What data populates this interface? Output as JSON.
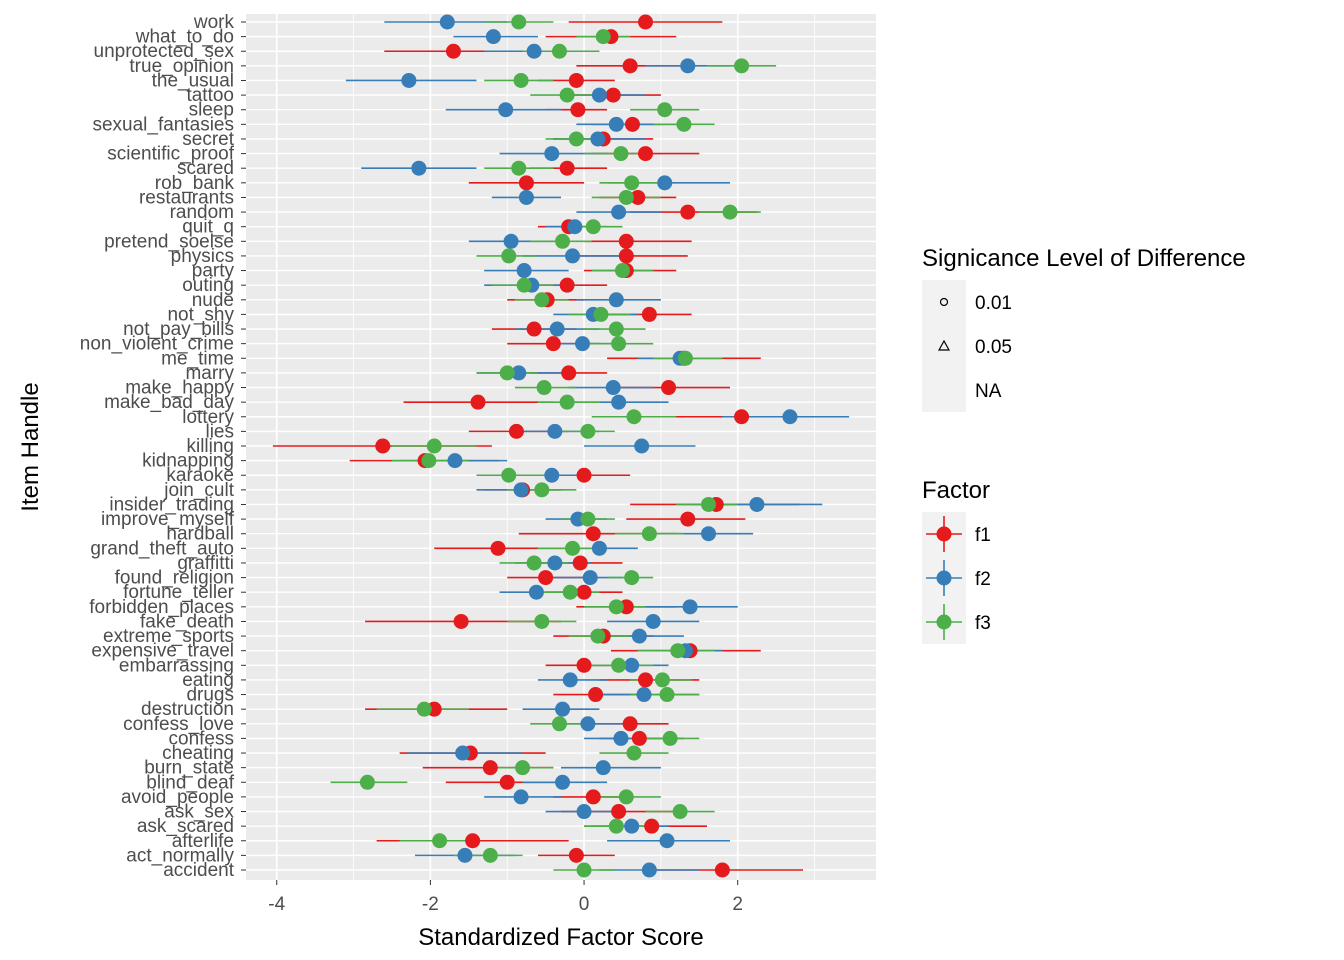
{
  "chart_data": {
    "type": "scatter",
    "subtype": "dot-and-interval (horizontal error bars)",
    "xlabel": "Standardized Factor Score",
    "ylabel": "Item Handle",
    "xlim": [
      -4.4,
      3.8
    ],
    "xticks": [
      -4,
      -2,
      0,
      2
    ],
    "grid": true,
    "legend_position": "right",
    "items": [
      "work",
      "what_to_do",
      "unprotected_sex",
      "true_opinion",
      "the_usual",
      "tattoo",
      "sleep",
      "sexual_fantasies",
      "secret",
      "scientific_proof",
      "scared",
      "rob_bank",
      "restaurants",
      "random",
      "quit_q",
      "pretend_soelse",
      "physics",
      "party",
      "outing",
      "nude",
      "not_shy",
      "not_pay_bills",
      "non_violent_crime",
      "me_time",
      "marry",
      "make_happy",
      "make_bad_day",
      "lottery",
      "lies",
      "killing",
      "kidnapping",
      "karaoke",
      "join_cult",
      "insider_trading",
      "improve_myself",
      "hardball",
      "grand_theft_auto",
      "graffitti",
      "found_religion",
      "fortune_teller",
      "forbidden_places",
      "fake_death",
      "extreme_sports",
      "expensive_travel",
      "embarrassing",
      "eating",
      "drugs",
      "destruction",
      "confess_love",
      "confess",
      "cheating",
      "burn_state",
      "blind_deaf",
      "avoid_people",
      "ask_sex",
      "ask_scared",
      "afterlife",
      "act_normally",
      "accident"
    ],
    "series": [
      {
        "name": "f1",
        "color": "#E41A1C",
        "values": [
          0.8,
          0.35,
          -1.7,
          0.6,
          -0.1,
          0.38,
          -0.08,
          0.63,
          0.25,
          0.8,
          -0.22,
          -0.75,
          0.7,
          1.35,
          -0.2,
          0.55,
          0.55,
          0.55,
          -0.22,
          -0.48,
          0.85,
          -0.65,
          -0.4,
          1.3,
          -0.2,
          1.1,
          -1.38,
          2.05,
          -0.88,
          -2.62,
          -2.07,
          0.0,
          -0.8,
          1.72,
          1.35,
          0.12,
          -1.12,
          -0.05,
          -0.5,
          0.0,
          0.55,
          -1.6,
          0.25,
          1.38,
          0.0,
          0.8,
          0.15,
          -1.95,
          0.6,
          0.72,
          -1.48,
          -1.22,
          -1.0,
          0.12,
          0.45,
          0.88,
          -1.45,
          -0.1,
          1.8
        ],
        "low": [
          -0.2,
          -0.5,
          -2.6,
          -0.1,
          -0.6,
          -0.2,
          -0.5,
          0.1,
          -0.4,
          0.1,
          -0.7,
          -1.5,
          0.2,
          0.6,
          -0.6,
          0.0,
          -0.1,
          0.0,
          -0.7,
          -1.0,
          0.3,
          -1.2,
          -1.0,
          0.3,
          -0.7,
          0.3,
          -2.35,
          0.75,
          -1.5,
          -4.05,
          -3.05,
          -0.6,
          -1.3,
          0.6,
          0.55,
          -0.85,
          -1.95,
          -0.7,
          -1.0,
          -0.5,
          -0.1,
          -2.85,
          -0.4,
          0.35,
          -0.5,
          0.2,
          -0.4,
          -2.85,
          0.1,
          0.2,
          -2.4,
          -2.1,
          -1.8,
          -0.4,
          -0.3,
          0.0,
          -2.7,
          -0.6,
          0.8
        ],
        "high": [
          1.8,
          1.2,
          -0.8,
          1.3,
          0.4,
          1.0,
          0.3,
          1.2,
          0.9,
          1.5,
          0.3,
          0.0,
          1.2,
          2.25,
          0.2,
          1.4,
          1.35,
          1.2,
          0.3,
          0.0,
          1.4,
          -0.1,
          0.2,
          2.3,
          0.3,
          1.9,
          -0.4,
          3.4,
          -0.2,
          -1.2,
          -1.1,
          0.6,
          -0.3,
          2.8,
          2.1,
          1.2,
          -0.3,
          0.5,
          0.0,
          0.5,
          1.2,
          -0.3,
          0.9,
          2.3,
          0.5,
          1.5,
          0.7,
          -1.0,
          1.1,
          1.3,
          -0.5,
          -0.4,
          -0.2,
          0.6,
          1.2,
          1.6,
          -0.2,
          0.4,
          2.85
        ]
      },
      {
        "name": "f2",
        "color": "#377EB8",
        "values": [
          -1.78,
          -1.18,
          -0.65,
          1.35,
          -2.28,
          0.2,
          -1.02,
          0.42,
          0.18,
          -0.42,
          -2.15,
          1.05,
          -0.75,
          0.45,
          -0.12,
          -0.95,
          -0.15,
          -0.78,
          -0.68,
          0.42,
          0.12,
          -0.35,
          -0.02,
          1.25,
          -0.85,
          0.38,
          0.45,
          2.68,
          -0.38,
          0.75,
          -1.68,
          -0.42,
          -0.82,
          2.25,
          -0.08,
          1.62,
          0.2,
          -0.38,
          0.08,
          -0.62,
          1.38,
          0.9,
          0.72,
          1.32,
          0.62,
          -0.18,
          0.78,
          -0.28,
          0.05,
          0.48,
          -1.58,
          0.25,
          -0.28,
          -0.82,
          0.0,
          0.62,
          1.08,
          -1.55,
          0.85
        ],
        "low": [
          -2.6,
          -1.7,
          -1.3,
          0.8,
          -3.1,
          -0.3,
          -1.8,
          -0.1,
          -0.4,
          -1.1,
          -2.9,
          0.3,
          -1.2,
          -0.1,
          -0.5,
          -1.5,
          -0.8,
          -1.3,
          -1.3,
          -0.1,
          -0.4,
          -0.9,
          -0.5,
          0.7,
          -1.4,
          -0.2,
          -0.2,
          1.8,
          -0.9,
          0.0,
          -2.4,
          -0.9,
          -1.4,
          1.4,
          -0.5,
          1.0,
          -0.3,
          -0.9,
          -0.4,
          -1.1,
          0.7,
          0.3,
          0.2,
          0.7,
          0.1,
          -0.6,
          0.1,
          -0.8,
          -0.4,
          0.0,
          -2.3,
          -0.3,
          -0.8,
          -1.3,
          -0.5,
          0.1,
          0.3,
          -2.2,
          0.2
        ],
        "high": [
          -1.0,
          -0.6,
          0.0,
          1.9,
          -1.4,
          0.8,
          -0.3,
          1.0,
          0.8,
          0.3,
          -1.4,
          1.9,
          -0.3,
          1.0,
          0.3,
          -0.4,
          0.5,
          -0.2,
          -0.1,
          1.0,
          0.7,
          0.2,
          0.5,
          1.8,
          -0.3,
          0.9,
          1.1,
          3.45,
          0.2,
          1.45,
          -1.0,
          0.1,
          -0.3,
          3.1,
          0.3,
          2.2,
          0.7,
          0.1,
          0.5,
          -0.1,
          2.0,
          1.5,
          1.3,
          1.8,
          1.1,
          0.3,
          1.5,
          0.2,
          0.5,
          1.0,
          -0.8,
          1.0,
          0.3,
          -0.3,
          0.5,
          1.1,
          1.9,
          -0.9,
          1.5
        ]
      },
      {
        "name": "f3",
        "color": "#4DAF4A",
        "values": [
          -0.85,
          0.25,
          -0.32,
          2.05,
          -0.82,
          -0.22,
          1.05,
          1.3,
          -0.1,
          0.48,
          -0.85,
          0.62,
          0.55,
          1.9,
          0.12,
          -0.28,
          -0.98,
          0.5,
          -0.78,
          -0.55,
          0.22,
          0.42,
          0.45,
          1.32,
          -1.0,
          -0.52,
          -0.22,
          0.65,
          0.05,
          -1.95,
          -2.02,
          -0.98,
          -0.55,
          1.62,
          0.05,
          0.85,
          -0.15,
          -0.65,
          0.62,
          -0.18,
          0.42,
          -0.55,
          0.18,
          1.22,
          0.45,
          1.02,
          1.08,
          -2.08,
          -0.32,
          1.12,
          0.65,
          -0.8,
          -2.82,
          0.55,
          1.25,
          0.42,
          -1.88,
          -1.22,
          0.0
        ],
        "low": [
          -1.3,
          -0.1,
          -0.8,
          1.6,
          -1.3,
          -0.7,
          0.6,
          0.9,
          -0.5,
          0.0,
          -1.3,
          0.2,
          0.1,
          1.5,
          -0.2,
          -0.7,
          -1.4,
          0.1,
          -1.2,
          -0.9,
          -0.2,
          0.0,
          0.0,
          0.9,
          -1.4,
          -0.9,
          -0.6,
          0.1,
          -0.3,
          -2.5,
          -2.5,
          -1.4,
          -1.0,
          1.2,
          -0.3,
          0.4,
          -0.6,
          -1.1,
          0.3,
          -0.6,
          0.0,
          -1.0,
          -0.2,
          0.7,
          0.0,
          0.6,
          0.6,
          -2.7,
          -0.7,
          0.7,
          0.2,
          -1.2,
          -3.3,
          0.1,
          0.8,
          0.0,
          -2.4,
          -1.7,
          -0.4
        ],
        "high": [
          -0.4,
          0.6,
          0.2,
          2.5,
          -0.4,
          0.2,
          1.5,
          1.7,
          0.3,
          0.9,
          -0.4,
          1.0,
          1.0,
          2.3,
          0.5,
          0.1,
          -0.6,
          0.9,
          -0.4,
          -0.2,
          0.6,
          0.8,
          0.9,
          1.8,
          -0.6,
          -0.1,
          0.2,
          1.2,
          0.4,
          -1.4,
          -1.5,
          -0.5,
          -0.1,
          2.0,
          0.4,
          1.3,
          0.3,
          -0.2,
          0.9,
          0.2,
          0.8,
          -0.1,
          0.6,
          1.7,
          0.9,
          1.4,
          1.5,
          -1.5,
          0.1,
          1.5,
          1.1,
          -0.4,
          -2.3,
          1.0,
          1.7,
          0.8,
          -1.4,
          -0.8,
          0.4
        ]
      }
    ],
    "legends": [
      {
        "title": "Signicance Level of Difference",
        "entries": [
          {
            "label": "0.01",
            "shape": "circle"
          },
          {
            "label": "0.05",
            "shape": "triangle"
          },
          {
            "label": "NA",
            "shape": "none"
          }
        ]
      },
      {
        "title": "Factor",
        "entries": [
          {
            "label": "f1",
            "color": "#E41A1C"
          },
          {
            "label": "f2",
            "color": "#377EB8"
          },
          {
            "label": "f3",
            "color": "#4DAF4A"
          }
        ]
      }
    ]
  }
}
